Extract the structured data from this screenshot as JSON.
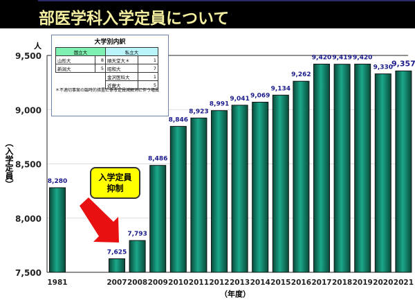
{
  "header": {
    "title": "部医学科入学定員について"
  },
  "inset": {
    "title": "大学別内訳",
    "national_header": "国立大",
    "private_header": "私立大",
    "national": [
      {
        "name": "山形大",
        "value": "8"
      },
      {
        "name": "新潟大",
        "value": "5"
      }
    ],
    "private": [
      {
        "name": "順天堂大＊",
        "value": "1"
      },
      {
        "name": "昭和大",
        "value": "7"
      },
      {
        "name": "金沢医科大",
        "value": "1"
      },
      {
        "name": "近畿大",
        "value": "5"
      }
    ],
    "note": "＊不適切事案の臨時的措置に係る定員減解消に伴う増員"
  },
  "callout": {
    "line1": "入学定員",
    "line2": "抑制"
  },
  "colors": {
    "bar": "#1aa88a",
    "bar_dark": "#0a4a3a",
    "label": "#1a1a8c",
    "arrow": "#e81010",
    "callout_bg": "#ffff00"
  },
  "chart_data": {
    "type": "bar",
    "categories": [
      "1981",
      "2007",
      "2008",
      "2009",
      "2010",
      "2011",
      "2012",
      "2013",
      "2014",
      "2015",
      "2016",
      "2017",
      "2018",
      "2019",
      "2020",
      "2021"
    ],
    "values": [
      8280,
      7625,
      7793,
      8486,
      8846,
      8923,
      8991,
      9041,
      9069,
      9134,
      9262,
      9420,
      9419,
      9420,
      9330,
      9357
    ],
    "data_labels": [
      "8,280",
      "7,625",
      "7,793",
      "8,486",
      "8,846",
      "8,923",
      "8,991",
      "9,041",
      "9,069",
      "9,134",
      "9,262",
      "9,420",
      "9,419",
      "9,420",
      "9,330",
      "9,357"
    ],
    "ylim": [
      7500,
      9500
    ],
    "yticks": [
      "7,500",
      "8,000",
      "8,500",
      "9,000",
      "9,500"
    ],
    "yunit": "人",
    "ylabel": "（入学定員）",
    "xlabel": "（年度）",
    "grid": true
  }
}
